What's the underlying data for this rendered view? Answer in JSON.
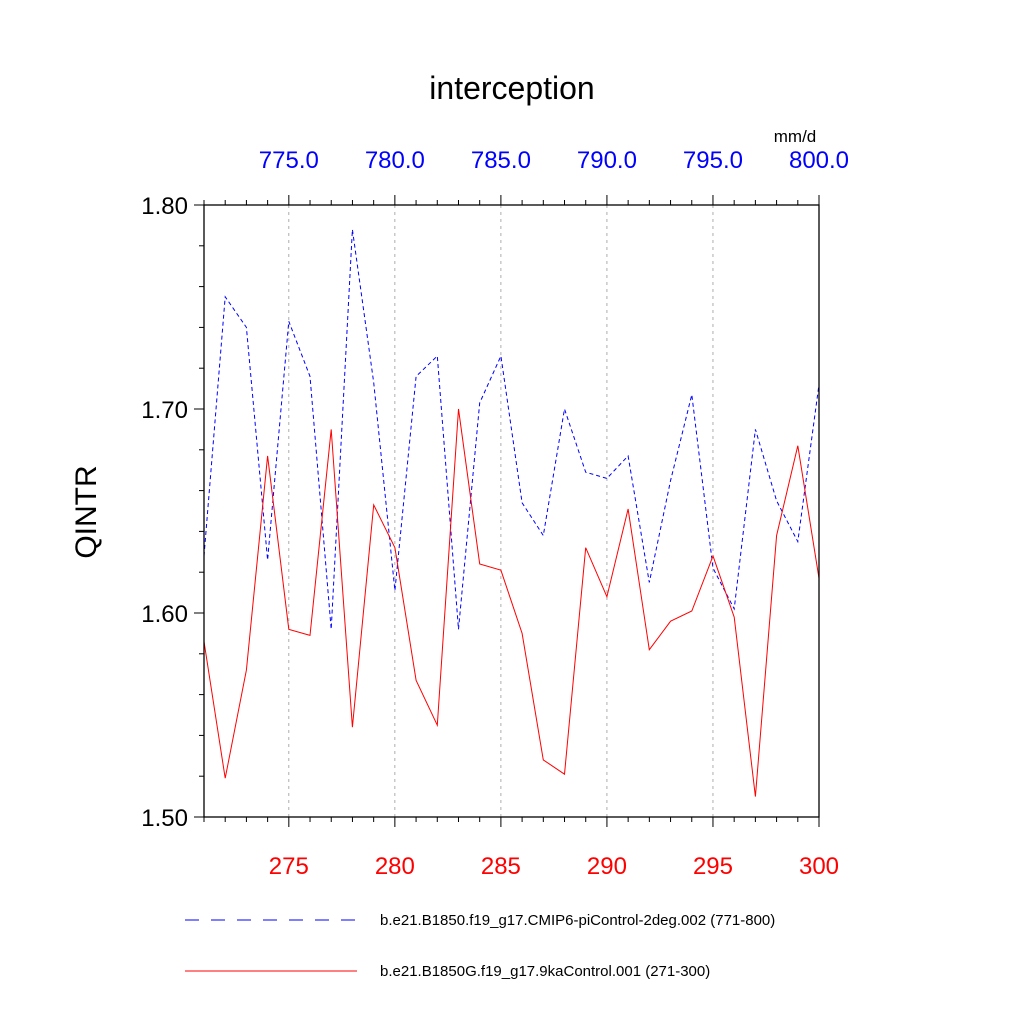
{
  "chart_data": {
    "type": "line",
    "title": "interception",
    "units_label": "mm/d",
    "ylabel": "QINTR",
    "ylim": [
      1.5,
      1.8
    ],
    "y_ticks": [
      "1.50",
      "1.60",
      "1.70",
      "1.80"
    ],
    "x_bottom": {
      "range": [
        271,
        300
      ],
      "ticks": [
        "275",
        "280",
        "285",
        "290",
        "295",
        "300"
      ],
      "color": "#ff0000"
    },
    "x_top": {
      "range": [
        771,
        800
      ],
      "ticks": [
        "775.0",
        "780.0",
        "785.0",
        "790.0",
        "795.0",
        "800.0"
      ],
      "color": "#0000ff"
    },
    "grid": "vertical dashed at major ticks",
    "legend_placement": "bottom",
    "series": [
      {
        "name": "b.e21.B1850.f19_g17.CMIP6-piControl-2deg.002 (771-800)",
        "axis": "top",
        "color": "#0000ff",
        "style": "dashed",
        "x": [
          771,
          772,
          773,
          774,
          775,
          776,
          777,
          778,
          779,
          780,
          781,
          782,
          783,
          784,
          785,
          786,
          787,
          788,
          789,
          790,
          791,
          792,
          793,
          794,
          795,
          796,
          797,
          798,
          799,
          800
        ],
        "values": [
          1.628,
          1.755,
          1.74,
          1.626,
          1.743,
          1.716,
          1.592,
          1.788,
          1.713,
          1.611,
          1.716,
          1.726,
          1.592,
          1.703,
          1.726,
          1.654,
          1.638,
          1.7,
          1.669,
          1.666,
          1.677,
          1.615,
          1.665,
          1.707,
          1.622,
          1.602,
          1.69,
          1.655,
          1.635,
          1.712
        ]
      },
      {
        "name": "b.e21.B1850G.f19_g17.9kaControl.001 (271-300)",
        "axis": "bottom",
        "color": "#ff0000",
        "style": "solid",
        "x": [
          271,
          272,
          273,
          274,
          275,
          276,
          277,
          278,
          279,
          280,
          281,
          282,
          283,
          284,
          285,
          286,
          287,
          288,
          289,
          290,
          291,
          292,
          293,
          294,
          295,
          296,
          297,
          298,
          299,
          300
        ],
        "values": [
          1.586,
          1.519,
          1.572,
          1.677,
          1.592,
          1.589,
          1.69,
          1.544,
          1.653,
          1.632,
          1.567,
          1.545,
          1.7,
          1.624,
          1.621,
          1.59,
          1.528,
          1.521,
          1.632,
          1.608,
          1.651,
          1.582,
          1.596,
          1.601,
          1.628,
          1.598,
          1.51,
          1.638,
          1.682,
          1.617
        ]
      }
    ]
  }
}
